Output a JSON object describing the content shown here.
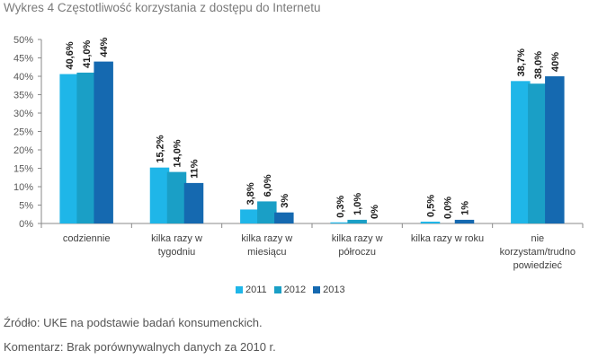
{
  "title": "Wykres 4 Częstotliwość korzystania z dostępu do Internetu",
  "chart_data": {
    "type": "bar",
    "title": "Wykres 4 Częstotliwość korzystania z dostępu do Internetu",
    "categories": [
      [
        "codziennie"
      ],
      [
        "kilka razy w",
        "tygodniu"
      ],
      [
        "kilka razy w",
        "miesiącu"
      ],
      [
        "kilka razy w",
        "półroczu"
      ],
      [
        "kilka razy w roku"
      ],
      [
        "nie",
        "korzystam/trudno",
        "powiedzieć"
      ]
    ],
    "series": [
      {
        "name": "2011",
        "color": "#1fb6e8",
        "values": [
          40.6,
          15.2,
          3.8,
          0.3,
          0.5,
          38.7
        ],
        "labels": [
          "40,6%",
          "15,2%",
          "3,8%",
          "0,3%",
          "0,5%",
          "38,7%"
        ]
      },
      {
        "name": "2012",
        "color": "#1a9fc6",
        "values": [
          41.0,
          14.0,
          6.0,
          1.0,
          0.0,
          38.0
        ],
        "labels": [
          "41,0%",
          "14,0%",
          "6,0%",
          "1,0%",
          "0,0%",
          "38,0%"
        ]
      },
      {
        "name": "2013",
        "color": "#1569b0",
        "values": [
          44,
          11,
          3,
          0,
          1,
          40
        ],
        "labels": [
          "44%",
          "11%",
          "3%",
          "0%",
          "1%",
          "40%"
        ]
      }
    ],
    "ylim": [
      0,
      50
    ],
    "yticks": [
      "0%",
      "5%",
      "10%",
      "15%",
      "20%",
      "25%",
      "30%",
      "35%",
      "40%",
      "45%",
      "50%"
    ],
    "xlabel": "",
    "ylabel": "",
    "grid": false,
    "legend_position": "bottom"
  },
  "legend": [
    {
      "label": "2011",
      "color": "#1fb6e8"
    },
    {
      "label": "2012",
      "color": "#1a9fc6"
    },
    {
      "label": "2013",
      "color": "#1569b0"
    }
  ],
  "footer": {
    "source": "Źródło: UKE na podstawie badań konsumenckich.",
    "comment": "Komentarz: Brak porównywalnych danych za 2010 r."
  }
}
